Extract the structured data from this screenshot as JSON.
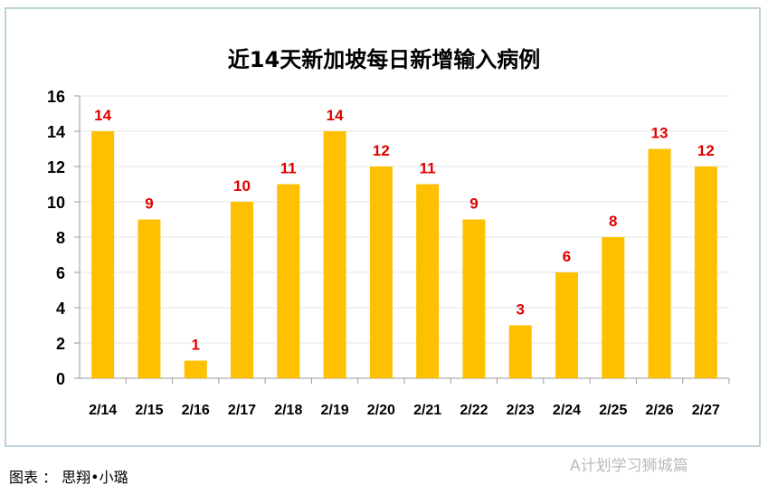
{
  "chart_data": {
    "type": "bar",
    "title": "近14天新加坡每日新增输入病例",
    "categories": [
      "2/14",
      "2/15",
      "2/16",
      "2/17",
      "2/18",
      "2/19",
      "2/20",
      "2/21",
      "2/22",
      "2/23",
      "2/24",
      "2/25",
      "2/26",
      "2/27"
    ],
    "values": [
      14,
      9,
      1,
      10,
      11,
      14,
      12,
      11,
      9,
      3,
      6,
      8,
      13,
      12
    ],
    "ylim": [
      0,
      16
    ],
    "yticks": [
      0,
      2,
      4,
      6,
      8,
      10,
      12,
      14,
      16
    ],
    "grid": true,
    "bar_color": "#ffc000",
    "label_color": "#e00000"
  },
  "caption": "图表 ： 思翔•小璐",
  "watermark": "A计划学习狮城篇"
}
